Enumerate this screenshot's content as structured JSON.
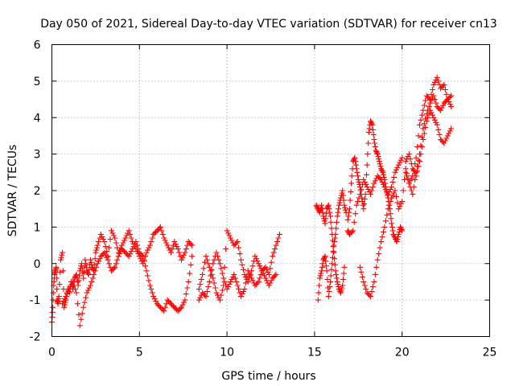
{
  "chart_data": {
    "type": "scatter",
    "title": "Day 050 of 2021, Sidereal Day-to-day VTEC variation (SDTVAR) for receiver cn13",
    "xlabel": "GPS time / hours",
    "ylabel": "SDTVAR / TECUs",
    "xlim": [
      0,
      25
    ],
    "ylim": [
      -2,
      6
    ],
    "xticks": [
      "0",
      "5",
      "10",
      "15",
      "20",
      "25"
    ],
    "yticks": [
      "-2",
      "-1",
      "0",
      "1",
      "2",
      "3",
      "4",
      "5",
      "6"
    ],
    "xtick_values": [
      0,
      5,
      10,
      15,
      20,
      25
    ],
    "ytick_values": [
      -2,
      -1,
      0,
      1,
      2,
      3,
      4,
      5,
      6
    ],
    "grid": true,
    "legend": "none",
    "marker": "+",
    "color": "#ff0000",
    "series": [
      {
        "x": [
          0.0,
          0.05,
          0.1,
          0.15,
          0.2,
          0.25,
          0.3,
          0.35,
          0.4,
          0.5,
          0.6,
          0.7,
          0.8,
          0.9,
          1.0,
          1.1,
          1.2,
          1.3,
          1.4,
          1.5,
          1.6,
          1.7,
          1.8,
          1.9,
          2.0,
          2.1,
          2.2,
          2.3,
          2.4,
          2.5,
          2.6,
          2.8,
          3.0,
          3.2,
          3.4,
          3.6,
          3.8,
          4.0,
          4.2,
          4.4,
          4.6,
          4.8,
          5.0,
          5.2,
          5.4,
          5.6,
          5.8,
          6.0,
          6.2,
          6.4,
          6.6,
          6.8,
          7.0,
          7.2,
          7.4,
          7.6,
          7.8,
          8.0
        ],
        "y": [
          -1.6,
          -1.2,
          -0.6,
          -0.3,
          -0.2,
          -0.1,
          -1.0,
          -1.1,
          -0.9,
          0.1,
          0.3,
          -1.2,
          -1.0,
          -0.7,
          -0.8,
          -0.5,
          -0.7,
          -0.4,
          -0.3,
          -0.6,
          -0.2,
          0.0,
          -0.4,
          0.1,
          -0.2,
          -0.3,
          0.1,
          -0.1,
          -0.2,
          0.3,
          0.5,
          0.8,
          0.6,
          0.2,
          0.9,
          0.7,
          0.3,
          0.5,
          0.7,
          0.9,
          0.6,
          0.4,
          0.2,
          0.0,
          0.3,
          0.5,
          0.8,
          0.9,
          1.0,
          0.7,
          0.5,
          0.3,
          0.6,
          0.4,
          0.1,
          0.3,
          0.6,
          0.5
        ]
      },
      {
        "x": [
          0.6,
          0.8,
          1.0,
          1.2,
          1.4,
          1.6,
          1.8,
          2.0,
          2.2,
          2.4,
          2.6,
          2.8,
          3.0,
          3.2,
          3.4,
          3.6,
          3.8,
          4.0,
          4.2,
          4.4,
          4.6,
          4.8,
          5.0,
          5.2,
          5.4,
          5.6,
          5.8,
          6.0,
          6.2,
          6.4,
          6.6,
          6.8,
          7.0,
          7.2,
          7.4,
          7.6,
          7.8,
          8.0
        ],
        "y": [
          -1.1,
          -0.9,
          -0.7,
          -0.5,
          -0.8,
          -1.7,
          -1.2,
          -0.8,
          -0.6,
          -0.3,
          0.0,
          0.2,
          0.3,
          0.1,
          -0.2,
          -0.1,
          0.2,
          0.4,
          0.3,
          0.2,
          0.4,
          0.6,
          0.3,
          0.2,
          -0.2,
          -0.6,
          -0.9,
          -1.1,
          -1.2,
          -1.3,
          -1.0,
          -1.1,
          -1.2,
          -1.3,
          -1.2,
          -1.0,
          -0.5,
          0.2
        ]
      },
      {
        "x": [
          8.4,
          8.6,
          8.8,
          9.0,
          9.2,
          9.4,
          9.6,
          9.8,
          10.0,
          10.2,
          10.4,
          10.6,
          10.8,
          11.0,
          11.2,
          11.4,
          11.6,
          11.8,
          12.0,
          12.2,
          12.4,
          12.6,
          12.8,
          13.0
        ],
        "y": [
          -0.7,
          -0.3,
          0.2,
          -0.1,
          -0.4,
          -0.8,
          -1.0,
          -0.6,
          0.9,
          0.7,
          0.5,
          0.6,
          0.1,
          -0.3,
          -0.5,
          -0.2,
          0.2,
          0.0,
          -0.2,
          -0.1,
          -0.3,
          0.2,
          0.5,
          0.8
        ]
      },
      {
        "x": [
          8.4,
          8.6,
          8.8,
          9.0,
          9.2,
          9.4,
          9.6,
          9.8,
          10.0,
          10.2,
          10.4,
          10.6,
          10.8,
          11.0,
          11.2,
          11.4,
          11.6,
          11.8,
          12.0,
          12.2,
          12.4,
          12.6,
          12.8
        ],
        "y": [
          -1.0,
          -0.8,
          -0.9,
          -0.5,
          0.0,
          0.3,
          0.0,
          -0.4,
          -0.7,
          -0.5,
          -0.3,
          -0.6,
          -0.9,
          -0.7,
          -0.2,
          -0.4,
          -0.6,
          -0.5,
          -0.2,
          -0.4,
          -0.6,
          -0.4,
          -0.3
        ]
      },
      {
        "x": [
          15.2,
          15.3,
          15.4,
          15.5,
          15.6,
          15.7,
          15.8,
          15.9,
          16.0,
          16.1,
          16.2,
          16.3,
          16.4,
          16.5,
          16.6,
          16.7,
          16.8
        ],
        "y": [
          -1.0,
          -0.4,
          -0.2,
          0.1,
          0.2,
          -0.2,
          -0.9,
          -0.5,
          0.0,
          0.5,
          0.8,
          1.3,
          1.6,
          1.8,
          2.0,
          1.6,
          1.4
        ]
      },
      {
        "x": [
          15.1,
          15.2,
          15.3,
          15.4,
          15.5,
          15.6,
          15.7,
          15.8,
          15.9,
          16.0,
          16.1,
          16.2,
          16.3,
          16.4,
          16.5,
          16.6,
          16.7
        ],
        "y": [
          1.6,
          1.5,
          1.4,
          1.6,
          1.3,
          1.1,
          1.5,
          1.6,
          1.3,
          0.8,
          0.3,
          -0.2,
          -0.5,
          -0.7,
          -0.8,
          -0.6,
          -0.1
        ]
      },
      {
        "x": [
          16.9,
          17.0,
          17.1,
          17.2,
          17.3,
          17.4,
          17.5,
          17.6,
          17.7,
          17.8,
          17.9,
          18.0,
          18.1,
          18.2,
          18.3,
          18.4,
          18.5,
          18.6,
          18.7,
          18.8,
          18.9,
          19.0,
          19.1,
          19.2,
          19.3,
          19.4,
          19.5,
          19.6,
          19.7,
          19.8,
          19.9,
          20.0
        ],
        "y": [
          1.2,
          1.5,
          2.2,
          2.8,
          2.9,
          2.6,
          2.3,
          2.1,
          1.8,
          1.5,
          1.9,
          2.7,
          3.6,
          3.9,
          3.8,
          3.4,
          3.1,
          3.0,
          2.8,
          2.6,
          2.5,
          2.3,
          2.0,
          1.8,
          1.5,
          1.1,
          0.8,
          0.7,
          0.6,
          0.8,
          1.0,
          0.9
        ]
      },
      {
        "x": [
          16.9,
          17.0,
          17.2,
          17.4,
          17.6,
          17.8,
          18.0,
          18.2,
          18.4,
          18.6,
          18.8,
          19.0,
          19.2,
          19.4,
          19.6,
          19.8,
          20.0
        ],
        "y": [
          0.9,
          0.8,
          0.9,
          1.6,
          1.9,
          2.3,
          2.1,
          1.9,
          2.2,
          2.4,
          2.3,
          2.1,
          1.9,
          2.1,
          2.5,
          2.7,
          2.9
        ]
      },
      {
        "x": [
          17.6,
          17.8,
          18.0,
          18.2,
          18.4,
          18.6,
          18.8,
          19.0,
          19.2,
          19.4,
          19.6,
          19.8,
          20.0,
          20.2,
          20.4,
          20.6,
          20.8,
          21.0,
          21.2,
          21.4,
          21.6,
          21.8,
          22.0,
          22.2,
          22.4,
          22.6,
          22.8
        ],
        "y": [
          -0.1,
          -0.5,
          -0.8,
          -0.9,
          -0.5,
          0.1,
          0.6,
          1.0,
          1.5,
          1.8,
          2.0,
          1.5,
          1.7,
          2.6,
          2.2,
          2.4,
          2.9,
          3.8,
          4.2,
          4.6,
          4.5,
          4.9,
          5.1,
          4.8,
          4.9,
          4.5,
          4.6
        ]
      },
      {
        "x": [
          20.2,
          20.4,
          20.6,
          20.8,
          21.0,
          21.2,
          21.4,
          21.6,
          21.8,
          22.0,
          22.2,
          22.4,
          22.6,
          22.8
        ],
        "y": [
          2.8,
          3.0,
          2.6,
          2.4,
          2.8,
          3.4,
          3.9,
          4.2,
          4.0,
          3.8,
          3.4,
          3.3,
          3.5,
          3.7
        ]
      },
      {
        "x": [
          20.2,
          20.4,
          20.6,
          20.8,
          21.0,
          21.2,
          21.4,
          21.6,
          21.8,
          22.0,
          22.2,
          22.4,
          22.6,
          22.8
        ],
        "y": [
          2.5,
          2.2,
          1.9,
          2.5,
          3.0,
          3.7,
          4.1,
          4.4,
          4.6,
          4.3,
          4.2,
          4.4,
          4.5,
          4.3
        ]
      }
    ]
  }
}
